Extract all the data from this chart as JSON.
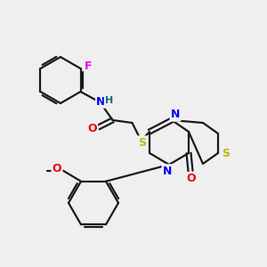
{
  "background_color": "#efefef",
  "bond_color": "#1a1a1a",
  "colors": {
    "N": "#0000ee",
    "O": "#ee0000",
    "S": "#bbbb00",
    "F": "#ee00ee",
    "H_label": "#007070",
    "C": "#1a1a1a"
  },
  "figsize": [
    3.0,
    3.0
  ],
  "dpi": 100
}
